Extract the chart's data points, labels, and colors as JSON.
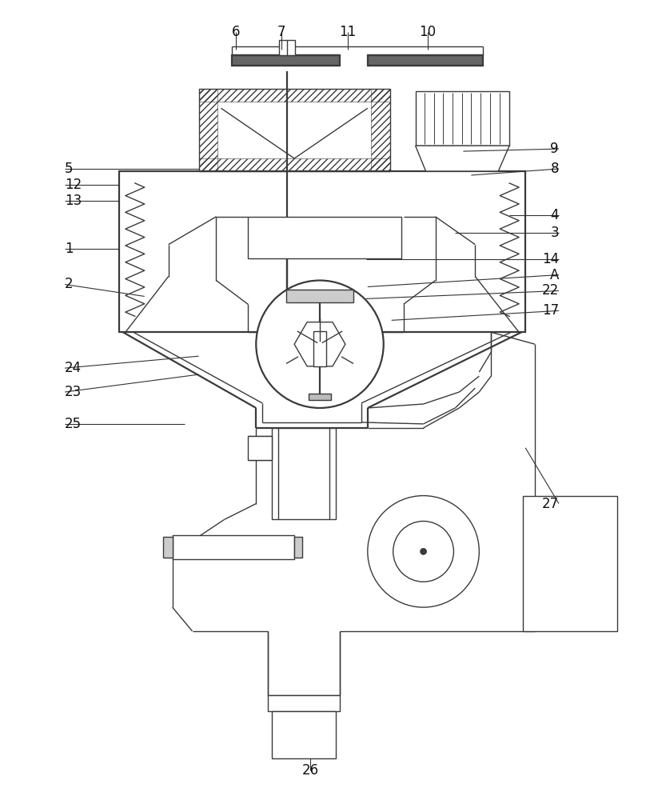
{
  "bg": "#ffffff",
  "lc": "#3a3a3a",
  "lw": 1.0,
  "lw2": 1.6,
  "fig_w": 8.08,
  "fig_h": 10.0,
  "annotations": [
    [
      80,
      310,
      148,
      310,
      "1",
      "left"
    ],
    [
      80,
      355,
      180,
      370,
      "2",
      "left"
    ],
    [
      80,
      250,
      148,
      250,
      "13",
      "left"
    ],
    [
      80,
      230,
      148,
      230,
      "12",
      "left"
    ],
    [
      80,
      210,
      248,
      210,
      "5",
      "left"
    ],
    [
      80,
      490,
      248,
      468,
      "23",
      "left"
    ],
    [
      80,
      460,
      248,
      445,
      "24",
      "left"
    ],
    [
      80,
      530,
      230,
      530,
      "25",
      "left"
    ],
    [
      700,
      268,
      638,
      268,
      "4",
      "right"
    ],
    [
      700,
      290,
      570,
      290,
      "3",
      "right"
    ],
    [
      700,
      210,
      590,
      218,
      "8",
      "right"
    ],
    [
      700,
      185,
      580,
      188,
      "9",
      "right"
    ],
    [
      700,
      323,
      458,
      323,
      "14",
      "right"
    ],
    [
      700,
      343,
      460,
      358,
      "A",
      "right"
    ],
    [
      700,
      363,
      458,
      373,
      "22",
      "right"
    ],
    [
      700,
      388,
      490,
      400,
      "17",
      "right"
    ],
    [
      700,
      630,
      658,
      560,
      "27",
      "right"
    ],
    [
      295,
      38,
      295,
      60,
      "6",
      "center"
    ],
    [
      352,
      38,
      352,
      60,
      "7",
      "center"
    ],
    [
      435,
      38,
      435,
      60,
      "11",
      "center"
    ],
    [
      535,
      38,
      535,
      60,
      "10",
      "center"
    ],
    [
      388,
      965,
      388,
      870,
      "26",
      "center"
    ]
  ]
}
